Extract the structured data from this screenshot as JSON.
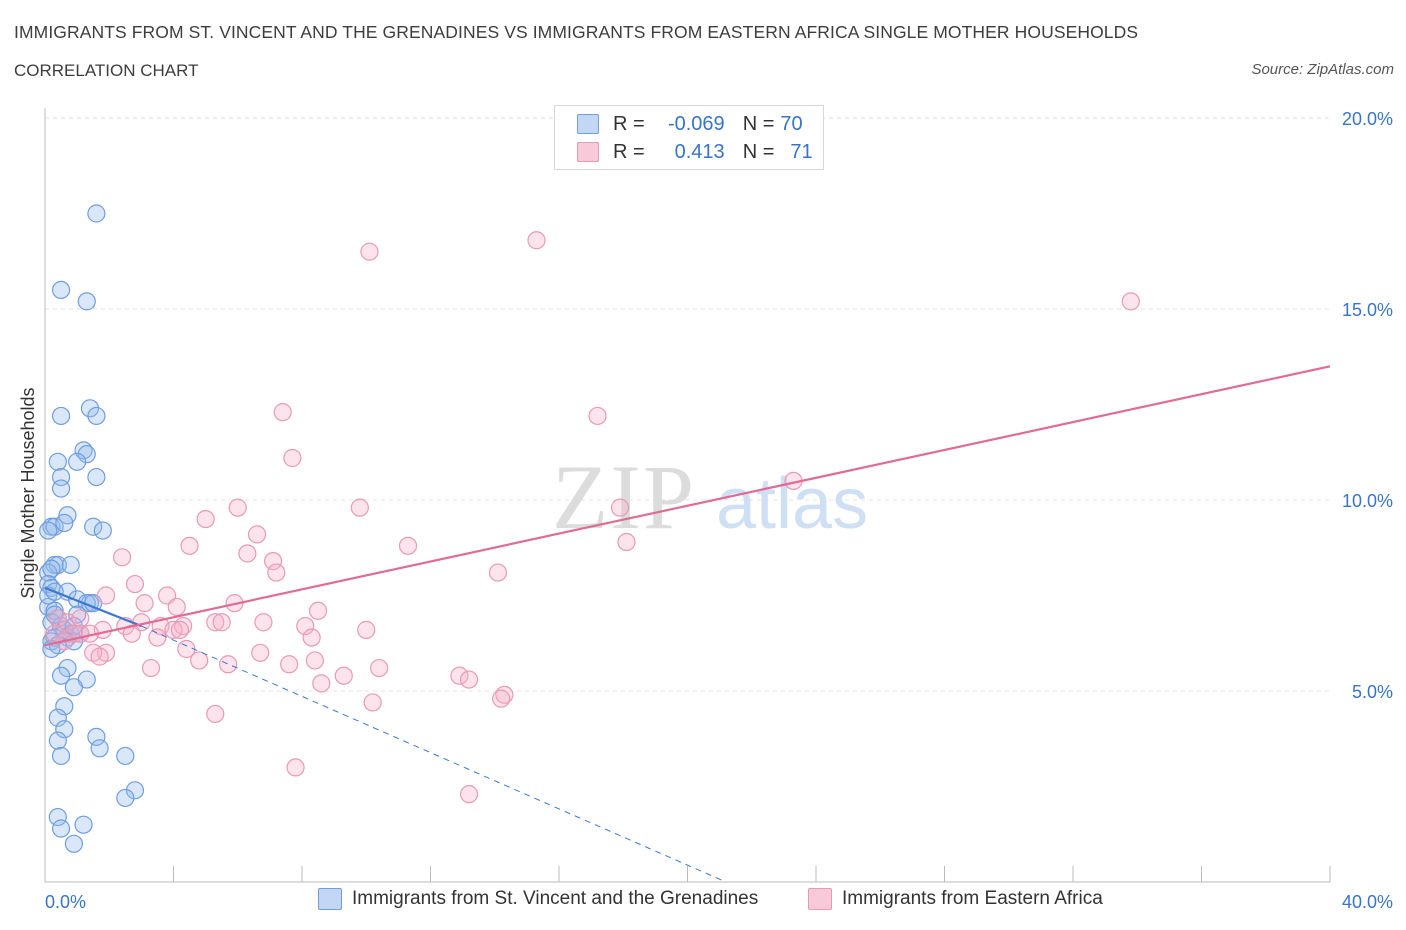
{
  "title": "IMMIGRANTS FROM ST. VINCENT AND THE GRENADINES VS IMMIGRANTS FROM EASTERN AFRICA SINGLE MOTHER HOUSEHOLDS",
  "subtitle": "CORRELATION CHART",
  "source": "Source: ZipAtlas.com",
  "watermark": {
    "zip": "ZIP",
    "atlas": "atlas"
  },
  "legend": {
    "r_label": "R =",
    "n_label": "N =",
    "rows": [
      {
        "r": "-0.069",
        "n": "70"
      },
      {
        "r": "0.413",
        "n": "71"
      }
    ]
  },
  "chart_data": {
    "type": "scatter",
    "ylabel": "Single Mother Households",
    "xlim": [
      0,
      40
    ],
    "ylim": [
      0,
      20
    ],
    "x_ticks_labels": [
      "0.0%",
      "40.0%"
    ],
    "y_ticks": [
      5,
      10,
      15,
      20
    ],
    "y_tick_labels": [
      "5.0%",
      "10.0%",
      "15.0%",
      "20.0%"
    ],
    "grid": true,
    "colors": {
      "blue": "#5b8fd6",
      "pink": "#e88aa9",
      "blue_line": "#3b78d0",
      "pink_line": "#e06c95"
    },
    "series": [
      {
        "name": "Immigrants from St. Vincent and the Grenadines",
        "color": "blue",
        "points": [
          [
            1.6,
            17.5
          ],
          [
            0.5,
            15.5
          ],
          [
            1.3,
            15.2
          ],
          [
            1.4,
            12.4
          ],
          [
            0.5,
            12.2
          ],
          [
            1.6,
            12.2
          ],
          [
            1.2,
            11.3
          ],
          [
            1.3,
            11.2
          ],
          [
            0.4,
            11.0
          ],
          [
            1.0,
            11.0
          ],
          [
            0.5,
            10.6
          ],
          [
            1.6,
            10.6
          ],
          [
            0.5,
            10.3
          ],
          [
            0.7,
            9.6
          ],
          [
            0.2,
            9.3
          ],
          [
            0.3,
            9.3
          ],
          [
            0.6,
            9.4
          ],
          [
            1.5,
            9.3
          ],
          [
            1.8,
            9.2
          ],
          [
            0.1,
            9.2
          ],
          [
            0.3,
            8.3
          ],
          [
            0.4,
            8.3
          ],
          [
            0.8,
            8.3
          ],
          [
            0.1,
            8.1
          ],
          [
            0.2,
            8.2
          ],
          [
            0.1,
            7.8
          ],
          [
            0.2,
            7.7
          ],
          [
            0.7,
            7.6
          ],
          [
            1.0,
            7.4
          ],
          [
            1.4,
            7.3
          ],
          [
            1.3,
            7.3
          ],
          [
            0.1,
            7.2
          ],
          [
            0.3,
            7.1
          ],
          [
            1.0,
            7.0
          ],
          [
            0.4,
            6.9
          ],
          [
            0.2,
            6.8
          ],
          [
            0.5,
            6.7
          ],
          [
            0.6,
            6.5
          ],
          [
            0.8,
            6.5
          ],
          [
            1.1,
            6.5
          ],
          [
            0.3,
            6.4
          ],
          [
            0.7,
            6.4
          ],
          [
            0.9,
            6.3
          ],
          [
            0.2,
            6.3
          ],
          [
            0.4,
            6.2
          ],
          [
            0.7,
            5.6
          ],
          [
            0.5,
            5.4
          ],
          [
            1.3,
            5.3
          ],
          [
            0.9,
            5.1
          ],
          [
            0.6,
            4.6
          ],
          [
            0.4,
            4.3
          ],
          [
            0.6,
            4.0
          ],
          [
            0.4,
            3.7
          ],
          [
            1.6,
            3.8
          ],
          [
            1.7,
            3.5
          ],
          [
            0.5,
            3.3
          ],
          [
            2.5,
            3.3
          ],
          [
            2.8,
            2.4
          ],
          [
            2.5,
            2.2
          ],
          [
            0.4,
            1.7
          ],
          [
            1.2,
            1.5
          ],
          [
            0.5,
            1.4
          ],
          [
            0.9,
            1.0
          ],
          [
            0.1,
            7.5
          ],
          [
            0.3,
            7.6
          ],
          [
            0.2,
            6.1
          ],
          [
            0.6,
            6.6
          ],
          [
            1.5,
            7.3
          ],
          [
            0.9,
            6.7
          ],
          [
            0.3,
            7.0
          ]
        ]
      },
      {
        "name": "Immigrants from Eastern Africa",
        "color": "pink",
        "points": [
          [
            15.3,
            16.8
          ],
          [
            10.1,
            16.5
          ],
          [
            33.8,
            15.2
          ],
          [
            7.4,
            12.3
          ],
          [
            17.2,
            12.2
          ],
          [
            7.7,
            11.1
          ],
          [
            23.3,
            10.5
          ],
          [
            6.0,
            9.8
          ],
          [
            9.8,
            9.8
          ],
          [
            17.9,
            9.8
          ],
          [
            5.0,
            9.5
          ],
          [
            6.6,
            9.1
          ],
          [
            4.5,
            8.8
          ],
          [
            11.3,
            8.8
          ],
          [
            18.1,
            8.9
          ],
          [
            2.4,
            8.5
          ],
          [
            6.3,
            8.6
          ],
          [
            7.1,
            8.4
          ],
          [
            7.2,
            8.1
          ],
          [
            14.1,
            8.1
          ],
          [
            2.8,
            7.8
          ],
          [
            1.9,
            7.5
          ],
          [
            3.8,
            7.5
          ],
          [
            5.9,
            7.3
          ],
          [
            3.1,
            7.3
          ],
          [
            4.1,
            7.2
          ],
          [
            8.5,
            7.1
          ],
          [
            0.4,
            6.9
          ],
          [
            0.7,
            6.8
          ],
          [
            1.1,
            6.9
          ],
          [
            1.8,
            6.6
          ],
          [
            2.5,
            6.7
          ],
          [
            3.0,
            6.8
          ],
          [
            3.6,
            6.7
          ],
          [
            4.3,
            6.7
          ],
          [
            5.3,
            6.8
          ],
          [
            5.5,
            6.8
          ],
          [
            6.8,
            6.8
          ],
          [
            8.1,
            6.7
          ],
          [
            10.0,
            6.6
          ],
          [
            0.3,
            6.5
          ],
          [
            0.9,
            6.5
          ],
          [
            1.1,
            6.5
          ],
          [
            1.4,
            6.5
          ],
          [
            2.7,
            6.5
          ],
          [
            3.5,
            6.4
          ],
          [
            4.0,
            6.6
          ],
          [
            4.2,
            6.6
          ],
          [
            8.3,
            6.4
          ],
          [
            0.6,
            6.3
          ],
          [
            1.9,
            6.0
          ],
          [
            1.5,
            6.0
          ],
          [
            4.4,
            6.1
          ],
          [
            6.7,
            6.0
          ],
          [
            1.7,
            5.9
          ],
          [
            4.8,
            5.8
          ],
          [
            8.4,
            5.8
          ],
          [
            7.6,
            5.7
          ],
          [
            5.7,
            5.7
          ],
          [
            3.3,
            5.6
          ],
          [
            10.4,
            5.6
          ],
          [
            9.3,
            5.4
          ],
          [
            12.9,
            5.4
          ],
          [
            13.2,
            5.3
          ],
          [
            8.6,
            5.2
          ],
          [
            14.3,
            4.9
          ],
          [
            14.2,
            4.8
          ],
          [
            10.2,
            4.7
          ],
          [
            5.3,
            4.4
          ],
          [
            7.8,
            3.0
          ],
          [
            13.2,
            2.3
          ]
        ]
      }
    ],
    "trendlines": [
      {
        "series": "blue",
        "solid": [
          [
            0,
            7.7
          ],
          [
            3.0,
            6.7
          ]
        ],
        "dashed": [
          [
            3.0,
            6.7
          ],
          [
            21.2,
            0
          ]
        ]
      },
      {
        "series": "pink",
        "solid": [
          [
            0,
            6.2
          ],
          [
            40,
            13.5
          ]
        ]
      }
    ]
  },
  "bottom_legend": [
    {
      "label": "Immigrants from St. Vincent and the Grenadines"
    },
    {
      "label": "Immigrants from Eastern Africa"
    }
  ]
}
